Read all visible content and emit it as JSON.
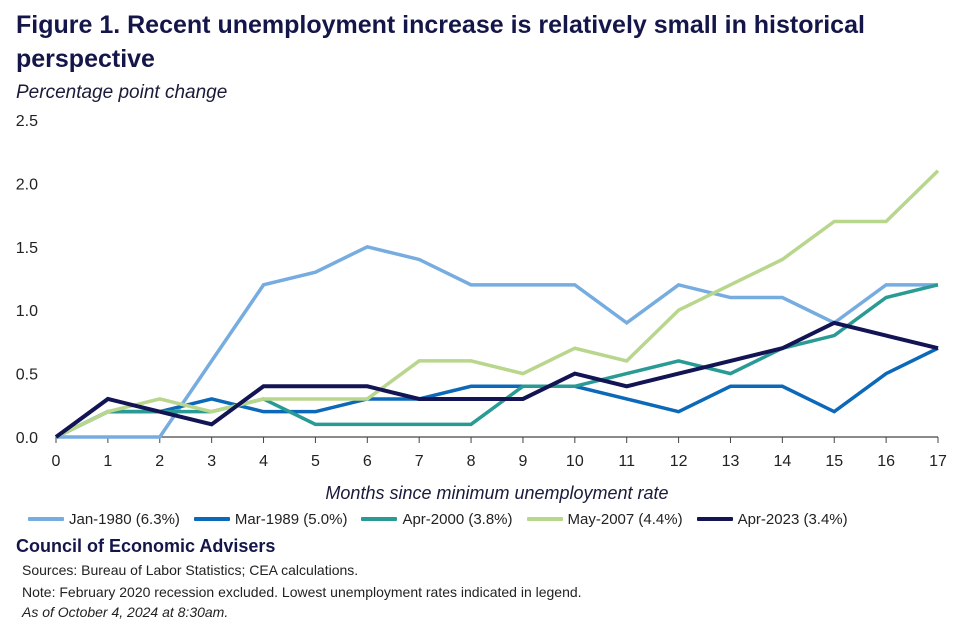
{
  "title": "Figure 1. Recent unemployment increase is relatively small in historical perspective",
  "subtitle": "Percentage point change",
  "source_org": "Council of Economic Advisers",
  "sources_note": "Sources: Bureau of Labor Statistics; CEA calculations.",
  "footnote": "Note: February 2020 recession excluded. Lowest unemployment rates indicated in legend.",
  "as_of": "As of October 4, 2024 at 8:30am.",
  "chart_data": {
    "type": "line",
    "xlabel": "Months since minimum unemployment rate",
    "ylabel": "",
    "x": [
      0,
      1,
      2,
      3,
      4,
      5,
      6,
      7,
      8,
      9,
      10,
      11,
      12,
      13,
      14,
      15,
      16,
      17
    ],
    "ylim": [
      0,
      2.5
    ],
    "yticks": [
      "0.0",
      "0.5",
      "1.0",
      "1.5",
      "2.0",
      "2.5"
    ],
    "xticks": [
      "0",
      "1",
      "2",
      "3",
      "4",
      "5",
      "6",
      "7",
      "8",
      "9",
      "10",
      "11",
      "12",
      "13",
      "14",
      "15",
      "16",
      "17"
    ],
    "grid": false,
    "legend_position": "bottom",
    "series": [
      {
        "name": "Jan-1980 (6.3%)",
        "color": "#76ace0",
        "values": [
          0,
          0,
          0,
          0.6,
          1.2,
          1.3,
          1.5,
          1.4,
          1.2,
          1.2,
          1.2,
          0.9,
          1.2,
          1.1,
          1.1,
          0.9,
          1.2,
          1.2
        ]
      },
      {
        "name": "Mar-1989 (5.0%)",
        "color": "#0c68b8",
        "values": [
          0,
          0.2,
          0.2,
          0.3,
          0.2,
          0.2,
          0.3,
          0.3,
          0.4,
          0.4,
          0.4,
          0.3,
          0.2,
          0.4,
          0.4,
          0.2,
          0.5,
          0.7
        ]
      },
      {
        "name": "Apr-2000 (3.8%)",
        "color": "#2a9a94",
        "values": [
          0,
          0.2,
          0.2,
          0.2,
          0.3,
          0.1,
          0.1,
          0.1,
          0.1,
          0.4,
          0.4,
          0.5,
          0.6,
          0.5,
          0.7,
          0.8,
          1.1,
          1.2
        ]
      },
      {
        "name": "May-2007 (4.4%)",
        "color": "#b8d68c",
        "values": [
          0,
          0.2,
          0.3,
          0.2,
          0.3,
          0.3,
          0.3,
          0.6,
          0.6,
          0.5,
          0.7,
          0.6,
          1.0,
          1.2,
          1.4,
          1.7,
          1.7,
          2.1
        ]
      },
      {
        "name": "Apr-2023 (3.4%)",
        "color": "#121454",
        "values": [
          0,
          0.3,
          0.2,
          0.1,
          0.4,
          0.4,
          0.4,
          0.3,
          0.3,
          0.3,
          0.5,
          0.4,
          0.5,
          0.6,
          0.7,
          0.9,
          0.8,
          0.7
        ]
      }
    ]
  }
}
